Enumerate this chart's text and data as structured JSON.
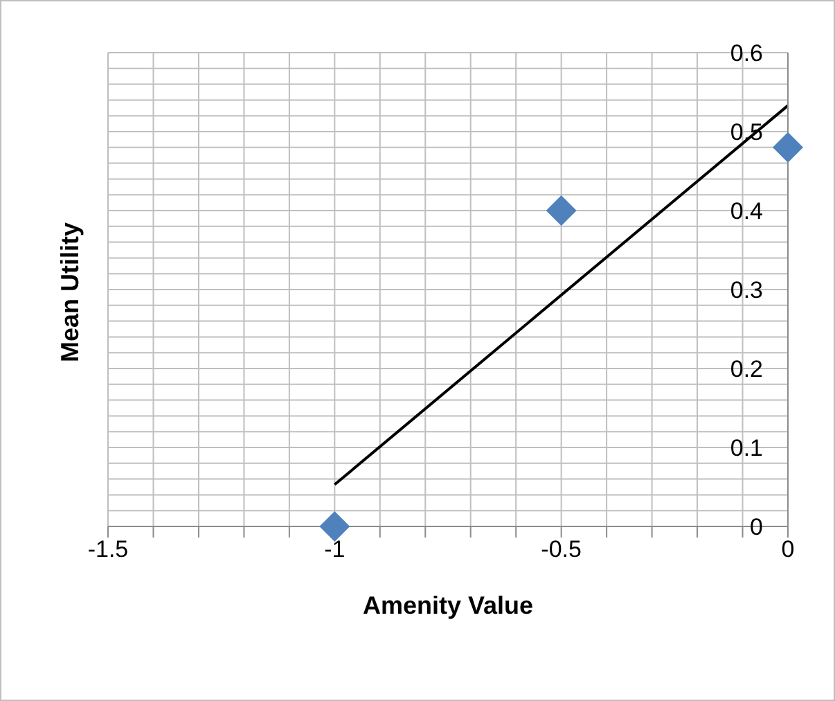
{
  "chart_data": {
    "type": "scatter",
    "xlabel": "Amenity Value",
    "ylabel": "Mean Utility",
    "marker": "diamond",
    "grid": true,
    "xlim": [
      -1.5,
      0
    ],
    "ylim": [
      0,
      0.6
    ],
    "xticks": [
      -1.5,
      {
        "value": -1.4,
        "label": null
      },
      {
        "value": -1.3,
        "label": null
      },
      {
        "value": -1.2,
        "label": null
      },
      {
        "value": -1.1,
        "label": null
      },
      -1,
      {
        "value": -0.9,
        "label": null
      },
      {
        "value": -0.8,
        "label": null
      },
      {
        "value": -0.7,
        "label": null
      },
      {
        "value": -0.6,
        "label": null
      },
      -0.5,
      {
        "value": -0.4,
        "label": null
      },
      {
        "value": -0.3,
        "label": null
      },
      {
        "value": -0.2,
        "label": null
      },
      {
        "value": -0.1,
        "label": null
      },
      0
    ],
    "yticks": [
      0,
      {
        "value": 0.02,
        "label": null
      },
      {
        "value": 0.04,
        "label": null
      },
      {
        "value": 0.06,
        "label": null
      },
      {
        "value": 0.08,
        "label": null
      },
      0.1,
      {
        "value": 0.12,
        "label": null
      },
      {
        "value": 0.14,
        "label": null
      },
      {
        "value": 0.16,
        "label": null
      },
      {
        "value": 0.18,
        "label": null
      },
      0.2,
      {
        "value": 0.22,
        "label": null
      },
      {
        "value": 0.24,
        "label": null
      },
      {
        "value": 0.26,
        "label": null
      },
      {
        "value": 0.28,
        "label": null
      },
      0.3,
      {
        "value": 0.32,
        "label": null
      },
      {
        "value": 0.34,
        "label": null
      },
      {
        "value": 0.36,
        "label": null
      },
      {
        "value": 0.38,
        "label": null
      },
      0.4,
      {
        "value": 0.42,
        "label": null
      },
      {
        "value": 0.44,
        "label": null
      },
      {
        "value": 0.46,
        "label": null
      },
      {
        "value": 0.48,
        "label": null
      },
      0.5,
      {
        "value": 0.52,
        "label": null
      },
      {
        "value": 0.54,
        "label": null
      },
      {
        "value": 0.56,
        "label": null
      },
      {
        "value": 0.58,
        "label": null
      },
      0.6
    ],
    "series": [
      {
        "type": "scatter",
        "color": "#4f81bd",
        "x": [
          -1,
          -0.5,
          0
        ],
        "values": [
          0,
          0.4,
          0.48
        ]
      },
      {
        "type": "line",
        "color": "#000000",
        "x": [
          -1,
          0
        ],
        "values": [
          0.053,
          0.533
        ],
        "marker": "none",
        "line_style": "solid"
      }
    ]
  }
}
